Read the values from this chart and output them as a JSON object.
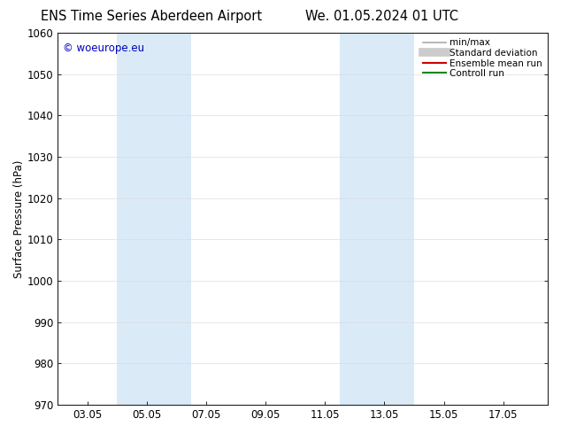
{
  "title_left": "ENS Time Series Aberdeen Airport",
  "title_right": "We. 01.05.2024 01 UTC",
  "ylabel": "Surface Pressure (hPa)",
  "ylim": [
    970,
    1060
  ],
  "yticks": [
    970,
    980,
    990,
    1000,
    1010,
    1020,
    1030,
    1040,
    1050,
    1060
  ],
  "xlim": [
    1.0,
    17.5
  ],
  "xtick_values": [
    2,
    4,
    6,
    8,
    10,
    12,
    14,
    16
  ],
  "xtick_labels": [
    "03.05",
    "05.05",
    "07.05",
    "09.05",
    "11.05",
    "13.05",
    "15.05",
    "17.05"
  ],
  "shaded_bands": [
    {
      "xmin": 3.0,
      "xmax": 5.5
    },
    {
      "xmin": 10.5,
      "xmax": 13.0
    }
  ],
  "shade_color": "#daeaf7",
  "watermark_text": "© woeurope.eu",
  "watermark_color": "#0000bb",
  "legend_items": [
    {
      "label": "min/max",
      "color": "#aaaaaa",
      "lw": 1.2,
      "style": "thin"
    },
    {
      "label": "Standard deviation",
      "color": "#cccccc",
      "lw": 7,
      "style": "thick"
    },
    {
      "label": "Ensemble mean run",
      "color": "#cc0000",
      "lw": 1.5,
      "style": "thin"
    },
    {
      "label": "Controll run",
      "color": "#008800",
      "lw": 1.5,
      "style": "thin"
    }
  ],
  "bg_color": "#ffffff",
  "grid_color": "#dddddd",
  "title_fontsize": 10.5,
  "tick_fontsize": 8.5,
  "ylabel_fontsize": 8.5,
  "watermark_fontsize": 8.5,
  "legend_fontsize": 7.5
}
